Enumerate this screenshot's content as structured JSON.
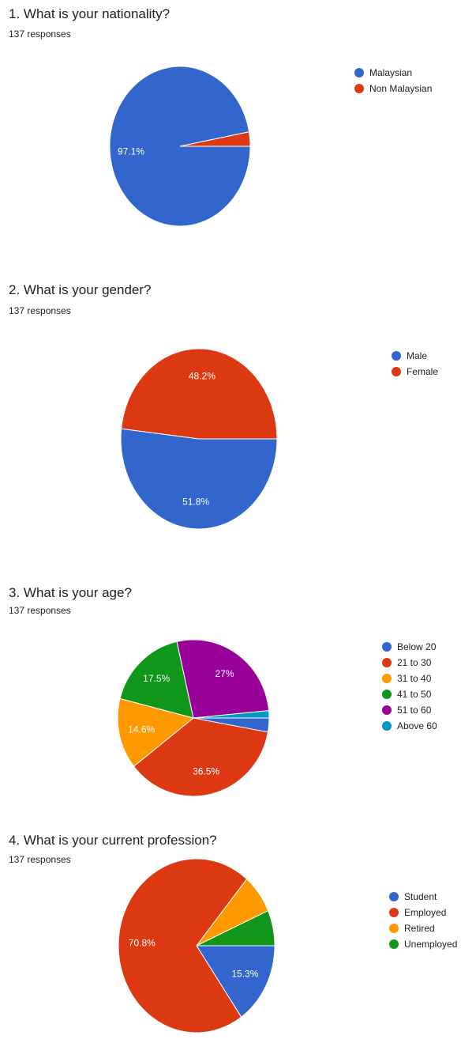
{
  "chart_data": [
    {
      "type": "pie",
      "title": "1. What is your nationality?",
      "subtitle": "137 responses",
      "categories": [
        "Malaysian",
        "Non Malaysian"
      ],
      "values": [
        97.1,
        2.9
      ],
      "labels": [
        "97.1%",
        ""
      ],
      "colors": [
        "#3366cc",
        "#dc3912"
      ],
      "legend_position": "right"
    },
    {
      "type": "pie",
      "title": "2. What is your gender?",
      "subtitle": "137 responses",
      "categories": [
        "Male",
        "Female"
      ],
      "values": [
        51.8,
        48.2
      ],
      "labels": [
        "51.8%",
        "48.2%"
      ],
      "colors": [
        "#3366cc",
        "#dc3912"
      ],
      "legend_position": "right"
    },
    {
      "type": "pie",
      "title": "3. What is your age?",
      "subtitle": "137 responses",
      "categories": [
        "Below 20",
        "21 to 30",
        "31 to 40",
        "41 to 50",
        "51 to 60",
        "Above 60"
      ],
      "values": [
        2.9,
        36.5,
        14.6,
        17.5,
        27,
        1.5
      ],
      "labels": [
        "",
        "36.5%",
        "14.6%",
        "17.5%",
        "27%",
        ""
      ],
      "colors": [
        "#3366cc",
        "#dc3912",
        "#ff9900",
        "#109618",
        "#990099",
        "#0099c6"
      ],
      "legend_position": "right"
    },
    {
      "type": "pie",
      "title": "4. What is your current profession?",
      "subtitle": "137 responses",
      "categories": [
        "Student",
        "Employed",
        "Retired",
        "Unemployed"
      ],
      "values": [
        15.3,
        70.8,
        7.3,
        6.6
      ],
      "labels": [
        "15.3%",
        "70.8%",
        "",
        ""
      ],
      "colors": [
        "#3366cc",
        "#dc3912",
        "#ff9900",
        "#109618"
      ],
      "legend_position": "right"
    }
  ]
}
